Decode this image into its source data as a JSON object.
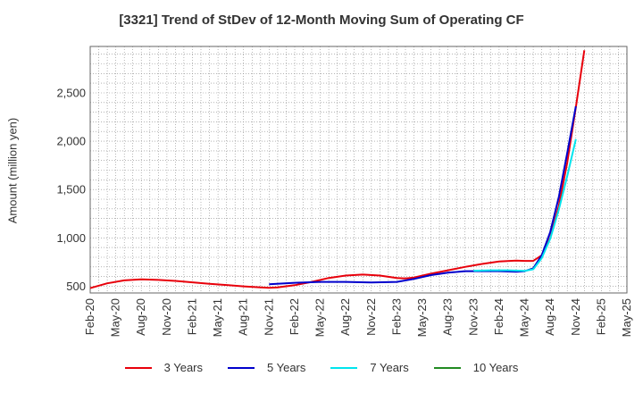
{
  "chart_data": {
    "type": "line",
    "title": "[3321]  Trend of StDev of 12-Month Moving Sum of Operating CF",
    "ylabel": "Amount (million yen)",
    "xlabel": "",
    "ylim": [
      430,
      2980
    ],
    "yticks": [
      500,
      1000,
      1500,
      2000,
      2500
    ],
    "ytick_labels": [
      "500",
      "1,000",
      "1,500",
      "2,000",
      "2,500"
    ],
    "x_ticks": [
      "Feb-20",
      "May-20",
      "Aug-20",
      "Nov-20",
      "Feb-21",
      "May-21",
      "Aug-21",
      "Nov-21",
      "Feb-22",
      "May-22",
      "Aug-22",
      "Nov-22",
      "Feb-23",
      "May-23",
      "Aug-23",
      "Nov-23",
      "Feb-24",
      "May-24",
      "Aug-24",
      "Nov-24",
      "Feb-25",
      "May-25"
    ],
    "x_range": [
      "2020-02",
      "2025-05"
    ],
    "grid": true,
    "legend_position": "bottom",
    "series": [
      {
        "name": "3 Years",
        "color": "#e8000b",
        "points": [
          [
            "2020-02",
            480
          ],
          [
            "2020-04",
            530
          ],
          [
            "2020-06",
            560
          ],
          [
            "2020-08",
            570
          ],
          [
            "2020-10",
            565
          ],
          [
            "2020-12",
            555
          ],
          [
            "2021-02",
            540
          ],
          [
            "2021-04",
            525
          ],
          [
            "2021-06",
            512
          ],
          [
            "2021-08",
            498
          ],
          [
            "2021-10",
            488
          ],
          [
            "2021-11",
            484
          ],
          [
            "2021-12",
            487
          ],
          [
            "2022-02",
            510
          ],
          [
            "2022-04",
            545
          ],
          [
            "2022-06",
            585
          ],
          [
            "2022-08",
            610
          ],
          [
            "2022-10",
            620
          ],
          [
            "2022-12",
            610
          ],
          [
            "2023-02",
            585
          ],
          [
            "2023-03",
            580
          ],
          [
            "2023-04",
            590
          ],
          [
            "2023-06",
            630
          ],
          [
            "2023-08",
            665
          ],
          [
            "2023-10",
            700
          ],
          [
            "2023-12",
            730
          ],
          [
            "2024-02",
            755
          ],
          [
            "2024-04",
            765
          ],
          [
            "2024-05",
            762
          ],
          [
            "2024-06",
            762
          ],
          [
            "2024-07",
            820
          ],
          [
            "2024-08",
            1000
          ],
          [
            "2024-09",
            1330
          ],
          [
            "2024-10",
            1780
          ],
          [
            "2024-11",
            2350
          ],
          [
            "2024-12",
            2940
          ]
        ]
      },
      {
        "name": "5 Years",
        "color": "#0000cc",
        "points": [
          [
            "2021-11",
            520
          ],
          [
            "2022-02",
            535
          ],
          [
            "2022-05",
            545
          ],
          [
            "2022-08",
            545
          ],
          [
            "2022-11",
            538
          ],
          [
            "2023-02",
            545
          ],
          [
            "2023-04",
            575
          ],
          [
            "2023-06",
            615
          ],
          [
            "2023-08",
            640
          ],
          [
            "2023-10",
            655
          ],
          [
            "2023-12",
            655
          ],
          [
            "2024-02",
            655
          ],
          [
            "2024-04",
            650
          ],
          [
            "2024-05",
            655
          ],
          [
            "2024-06",
            685
          ],
          [
            "2024-07",
            820
          ],
          [
            "2024-08",
            1060
          ],
          [
            "2024-09",
            1420
          ],
          [
            "2024-10",
            1880
          ],
          [
            "2024-11",
            2360
          ]
        ]
      },
      {
        "name": "7 Years",
        "color": "#00e5ee",
        "points": [
          [
            "2023-11",
            660
          ],
          [
            "2024-01",
            665
          ],
          [
            "2024-03",
            665
          ],
          [
            "2024-05",
            658
          ],
          [
            "2024-06",
            675
          ],
          [
            "2024-07",
            790
          ],
          [
            "2024-08",
            990
          ],
          [
            "2024-09",
            1290
          ],
          [
            "2024-10",
            1640
          ],
          [
            "2024-11",
            2020
          ]
        ]
      },
      {
        "name": "10 Years",
        "color": "#228b22",
        "points": []
      }
    ]
  }
}
